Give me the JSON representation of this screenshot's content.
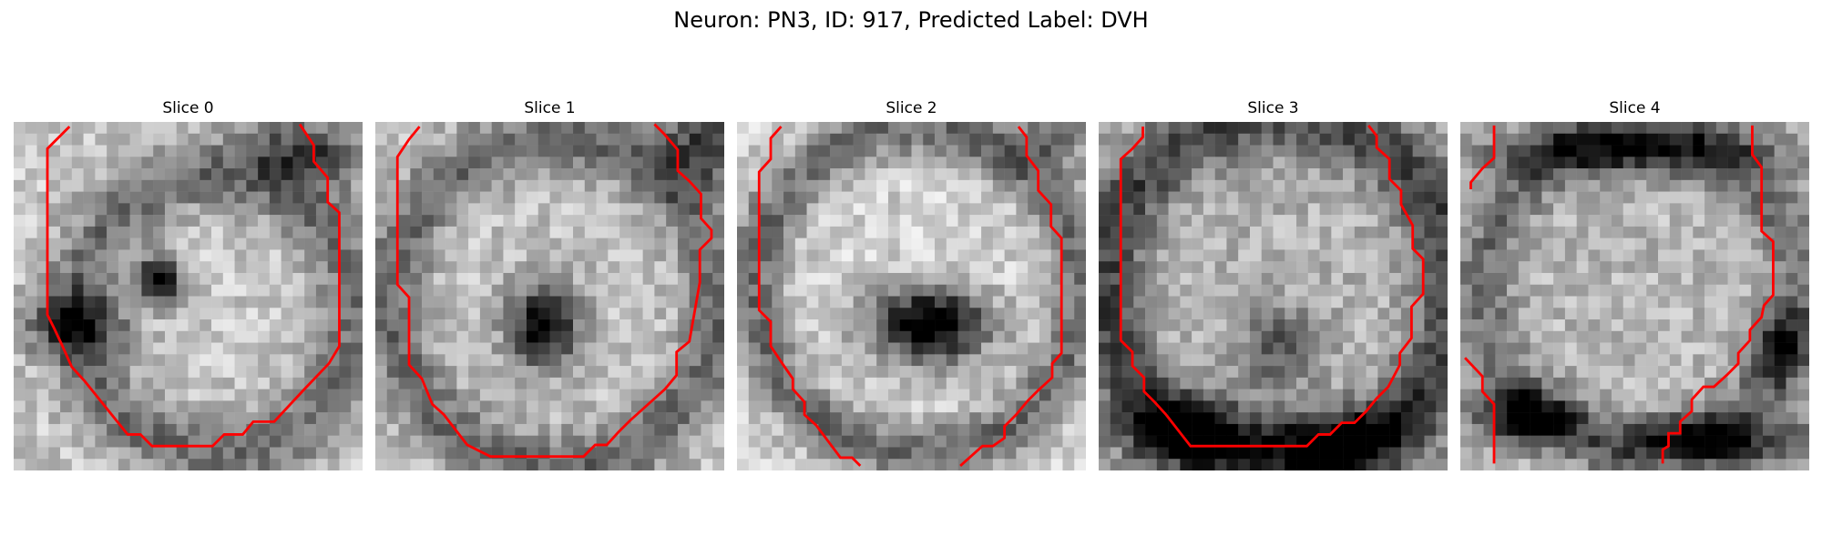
{
  "figure": {
    "title": "Neuron: PN3, ID: 917, Predicted Label: DVH"
  },
  "panels": [
    {
      "title": "Slice 0",
      "colormap": "grayscale",
      "contour_color": "#ff0000"
    },
    {
      "title": "Slice 1",
      "colormap": "grayscale",
      "contour_color": "#ff0000"
    },
    {
      "title": "Slice 2",
      "colormap": "grayscale",
      "contour_color": "#ff0000"
    },
    {
      "title": "Slice 3",
      "colormap": "grayscale",
      "contour_color": "#ff0000"
    },
    {
      "title": "Slice 4",
      "colormap": "grayscale",
      "contour_color": "#ff0000"
    }
  ]
}
